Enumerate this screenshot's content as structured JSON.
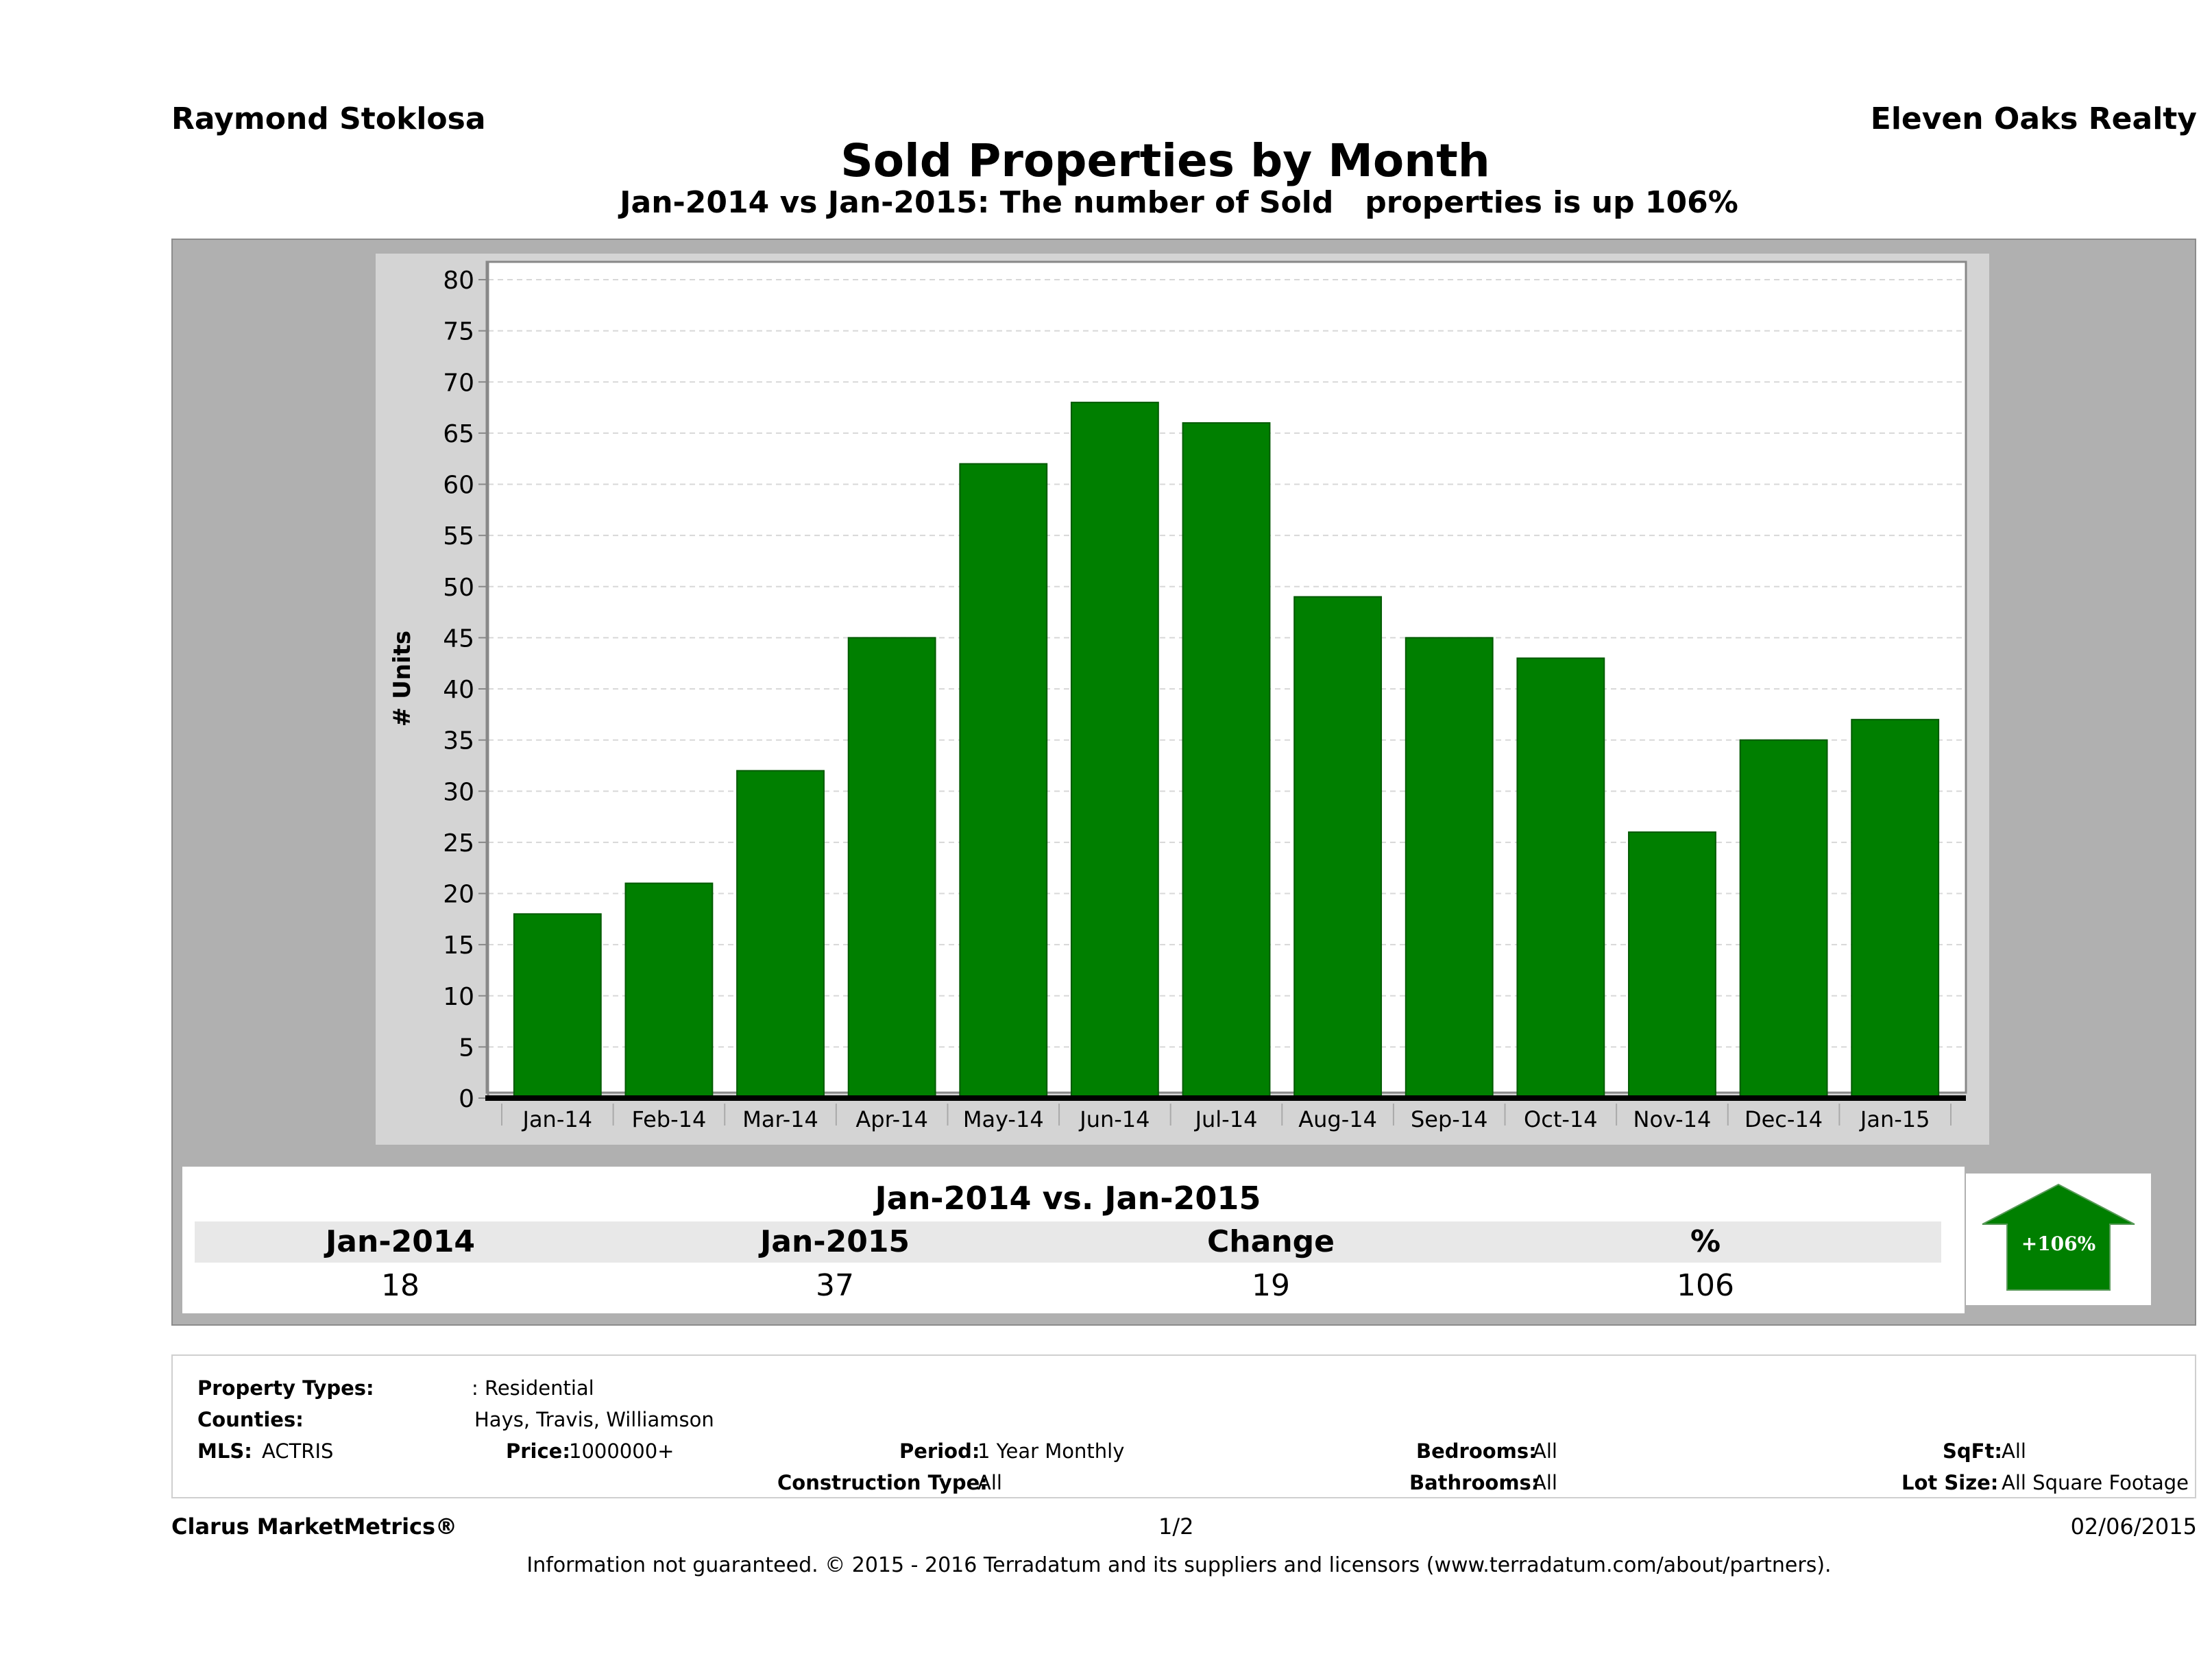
{
  "header": {
    "agent": "Raymond Stoklosa",
    "company": "Eleven Oaks Realty"
  },
  "chart_data": {
    "type": "bar",
    "title": "Sold Properties by Month",
    "subtitle": "Jan-2014 vs Jan-2015: The number of Sold   properties is up 106%",
    "xlabel": "",
    "ylabel": "# Units",
    "categories": [
      "Jan-14",
      "Feb-14",
      "Mar-14",
      "Apr-14",
      "May-14",
      "Jun-14",
      "Jul-14",
      "Aug-14",
      "Sep-14",
      "Oct-14",
      "Nov-14",
      "Dec-14",
      "Jan-15"
    ],
    "values": [
      18,
      21,
      32,
      45,
      62,
      68,
      66,
      49,
      45,
      43,
      26,
      35,
      37
    ],
    "ylim": [
      0,
      80
    ],
    "yticks": [
      0,
      5,
      10,
      15,
      20,
      25,
      30,
      35,
      40,
      45,
      50,
      55,
      60,
      65,
      70,
      75,
      80
    ],
    "grid": true,
    "bar_color": "#007f00"
  },
  "stats": {
    "heading": "Jan-2014 vs. Jan-2015",
    "columns": [
      {
        "label": "Jan-2014",
        "value": "18"
      },
      {
        "label": "Jan-2015",
        "value": "37"
      },
      {
        "label": "Change",
        "value": "19"
      },
      {
        "label": "%",
        "value": "106"
      }
    ],
    "badge": "+106%",
    "badge_color": "#007f00"
  },
  "filters": {
    "property_types_label": "Property Types:",
    "property_types_value": ": Residential",
    "counties_label": "Counties:",
    "counties_value": "Hays, Travis, Williamson",
    "mls_label": "MLS:",
    "mls_value": "ACTRIS",
    "price_label": "Price:",
    "price_value": "1000000+",
    "period_label": "Period:",
    "period_value": "1 Year Monthly",
    "construction_label": "Construction Type:",
    "construction_value": "All",
    "bedrooms_label": "Bedrooms:",
    "bedrooms_value": "All",
    "bathrooms_label": "Bathrooms:",
    "bathrooms_value": "All",
    "sqft_label": "SqFt:",
    "sqft_value": "All",
    "lot_label": "Lot Size:",
    "lot_value": "All Square Footage"
  },
  "footer": {
    "brand": "Clarus MarketMetrics®",
    "page": "1/2",
    "date": "02/06/2015",
    "disclaimer": "Information not guaranteed. © 2015 - 2016 Terradatum and its suppliers and licensors (www.terradatum.com/about/partners)."
  }
}
